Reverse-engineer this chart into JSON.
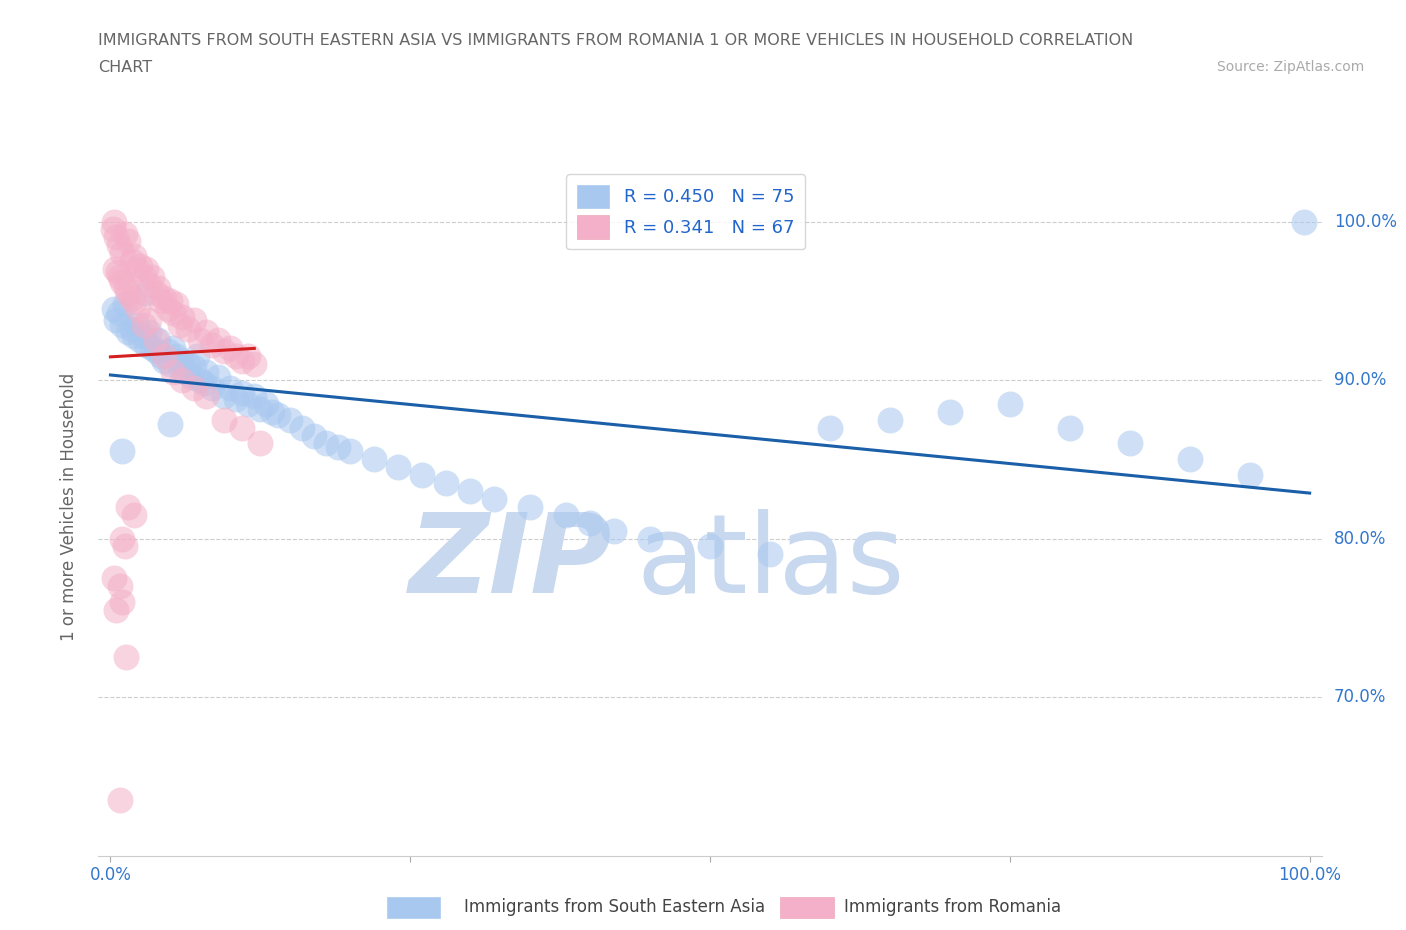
{
  "title_line1": "IMMIGRANTS FROM SOUTH EASTERN ASIA VS IMMIGRANTS FROM ROMANIA 1 OR MORE VEHICLES IN HOUSEHOLD CORRELATION",
  "title_line2": "CHART",
  "source_text": "Source: ZipAtlas.com",
  "ylabel": "1 or more Vehicles in Household",
  "R_blue": 0.45,
  "N_blue": 75,
  "R_pink": 0.341,
  "N_pink": 67,
  "color_blue": "#a8c8f0",
  "color_pink": "#f4b0c8",
  "color_trend_blue": "#1a5fa8",
  "color_trend_pink": "#d42020",
  "color_grid": "#c8c8c8",
  "color_title": "#666666",
  "color_source": "#aaaaaa",
  "color_legend_text": "#2266cc",
  "color_watermark_zip": "#c8d8ee",
  "color_watermark_atlas": "#c8d8ee",
  "watermark_zip": "ZIP",
  "watermark_atlas": "atlas",
  "legend_blue_label": "Immigrants from South Eastern Asia",
  "legend_pink_label": "Immigrants from Romania",
  "blue_x": [
    0.3,
    0.5,
    0.7,
    1.0,
    1.2,
    1.5,
    1.8,
    2.0,
    2.2,
    2.5,
    2.8,
    3.0,
    3.2,
    3.5,
    3.8,
    4.0,
    4.2,
    4.5,
    4.8,
    5.0,
    5.2,
    5.5,
    5.8,
    6.0,
    6.2,
    6.5,
    6.8,
    7.0,
    7.2,
    7.5,
    7.8,
    8.0,
    8.5,
    9.0,
    9.5,
    10.0,
    10.5,
    11.0,
    11.5,
    12.0,
    12.5,
    13.0,
    13.5,
    14.0,
    15.0,
    16.0,
    17.0,
    18.0,
    19.0,
    20.0,
    22.0,
    24.0,
    26.0,
    28.0,
    30.0,
    32.0,
    35.0,
    38.0,
    40.0,
    42.0,
    45.0,
    50.0,
    55.0,
    60.0,
    65.0,
    70.0,
    75.0,
    80.0,
    85.0,
    90.0,
    95.0,
    99.5,
    1.0,
    3.0,
    5.0
  ],
  "blue_y": [
    94.5,
    93.8,
    94.2,
    93.5,
    94.8,
    93.0,
    93.2,
    92.8,
    93.5,
    92.5,
    92.8,
    92.2,
    93.0,
    92.0,
    91.8,
    92.5,
    91.5,
    91.2,
    91.8,
    91.0,
    92.0,
    91.5,
    90.8,
    91.2,
    90.5,
    91.0,
    90.2,
    90.8,
    91.5,
    90.0,
    89.8,
    90.5,
    89.5,
    90.2,
    89.0,
    89.5,
    88.8,
    89.2,
    88.5,
    89.0,
    88.2,
    88.5,
    88.0,
    87.8,
    87.5,
    87.0,
    86.5,
    86.0,
    85.8,
    85.5,
    85.0,
    84.5,
    84.0,
    83.5,
    83.0,
    82.5,
    82.0,
    81.5,
    81.0,
    80.5,
    80.0,
    79.5,
    79.0,
    87.0,
    87.5,
    88.0,
    88.5,
    87.0,
    86.0,
    85.0,
    84.0,
    100.0,
    85.5,
    95.5,
    87.2
  ],
  "pink_x": [
    0.2,
    0.3,
    0.5,
    0.7,
    1.0,
    1.2,
    1.5,
    1.8,
    2.0,
    2.2,
    2.5,
    2.8,
    3.0,
    3.2,
    3.5,
    3.8,
    4.0,
    4.2,
    4.5,
    4.8,
    5.0,
    5.2,
    5.5,
    5.8,
    6.0,
    6.5,
    7.0,
    7.5,
    8.0,
    8.5,
    9.0,
    9.5,
    10.0,
    10.5,
    11.0,
    11.5,
    12.0,
    0.4,
    0.6,
    0.8,
    1.0,
    1.3,
    1.5,
    1.8,
    2.0,
    2.3,
    2.8,
    3.2,
    3.8,
    4.5,
    5.2,
    6.0,
    7.0,
    8.0,
    9.5,
    11.0,
    12.5,
    0.3,
    0.5,
    0.8,
    1.0,
    1.3,
    1.0,
    1.2,
    0.8,
    1.5,
    2.0
  ],
  "pink_y": [
    99.5,
    100.0,
    99.0,
    98.5,
    98.0,
    99.2,
    98.8,
    97.5,
    97.8,
    97.0,
    97.2,
    96.5,
    97.0,
    96.0,
    96.5,
    95.5,
    95.8,
    95.0,
    95.2,
    94.5,
    95.0,
    94.2,
    94.8,
    93.5,
    94.0,
    93.2,
    93.8,
    92.5,
    93.0,
    92.2,
    92.5,
    91.8,
    92.0,
    91.5,
    91.2,
    91.5,
    91.0,
    97.0,
    96.8,
    96.5,
    96.2,
    95.8,
    95.5,
    95.2,
    95.0,
    94.5,
    93.5,
    93.8,
    92.5,
    91.5,
    90.5,
    90.0,
    89.5,
    89.0,
    87.5,
    87.0,
    86.0,
    77.5,
    75.5,
    77.0,
    76.0,
    72.5,
    80.0,
    79.5,
    63.5,
    82.0,
    81.5
  ]
}
